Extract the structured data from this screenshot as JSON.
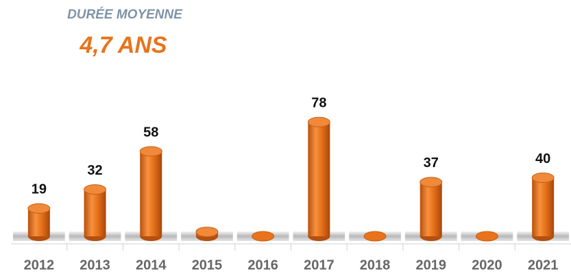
{
  "chart_data": {
    "type": "bar",
    "title": "DURÉE MOYENNE",
    "subtitle": "4,7 ANS",
    "categories": [
      "2012",
      "2013",
      "2014",
      "2015",
      "2016",
      "2017",
      "2018",
      "2019",
      "2020",
      "2021"
    ],
    "values": [
      19,
      32,
      58,
      3,
      0,
      78,
      0,
      37,
      0,
      40
    ],
    "value_labels": [
      "19",
      "32",
      "58",
      null,
      null,
      "78",
      null,
      "37",
      null,
      "40"
    ],
    "color": "#e8731c",
    "ylim": [
      0,
      80
    ]
  }
}
